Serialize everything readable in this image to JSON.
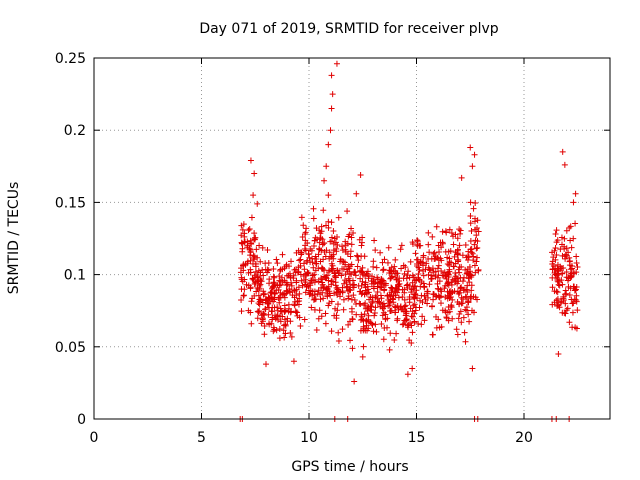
{
  "chart_data": {
    "type": "scatter",
    "title": "Day 071 of 2019, SRMTID for receiver plvp",
    "xlabel": "GPS time / hours",
    "ylabel": "SRMTID / TECUs",
    "xlim": [
      0,
      24
    ],
    "ylim": [
      0,
      0.25
    ],
    "xticks": [
      0,
      5,
      10,
      15,
      20
    ],
    "yticks": [
      0,
      0.05,
      0.1,
      0.15,
      0.2,
      0.25
    ],
    "ytick_labels": [
      "0",
      "0.05",
      "0.1",
      "0.15",
      "0.2",
      "0.25"
    ],
    "grid": true,
    "marker": "+",
    "color": "#e00000",
    "series": [
      {
        "name": "SRMTID",
        "clusters": [
          {
            "x_start": 6.8,
            "x_end": 7.6,
            "y_center": 0.105,
            "y_spread": 0.035
          },
          {
            "x_start": 7.6,
            "x_end": 9.5,
            "y_center": 0.085,
            "y_spread": 0.03
          },
          {
            "x_start": 9.5,
            "x_end": 11.0,
            "y_center": 0.105,
            "y_spread": 0.035
          },
          {
            "x_start": 11.0,
            "x_end": 12.5,
            "y_center": 0.1,
            "y_spread": 0.04
          },
          {
            "x_start": 12.5,
            "x_end": 15.0,
            "y_center": 0.085,
            "y_spread": 0.03
          },
          {
            "x_start": 15.0,
            "x_end": 17.5,
            "y_center": 0.095,
            "y_spread": 0.035
          },
          {
            "x_start": 17.5,
            "x_end": 17.9,
            "y_center": 0.12,
            "y_spread": 0.045
          },
          {
            "x_start": 21.3,
            "x_end": 22.5,
            "y_center": 0.1,
            "y_spread": 0.035
          }
        ],
        "points": [
          [
            10.7,
            0.165
          ],
          [
            10.8,
            0.175
          ],
          [
            10.9,
            0.19
          ],
          [
            11.0,
            0.2
          ],
          [
            11.05,
            0.215
          ],
          [
            11.1,
            0.225
          ],
          [
            11.05,
            0.238
          ],
          [
            11.3,
            0.246
          ],
          [
            10.9,
            0.155
          ],
          [
            7.3,
            0.179
          ],
          [
            7.45,
            0.17
          ],
          [
            7.4,
            0.155
          ],
          [
            12.4,
            0.169
          ],
          [
            12.2,
            0.156
          ],
          [
            17.5,
            0.188
          ],
          [
            17.7,
            0.183
          ],
          [
            17.6,
            0.175
          ],
          [
            17.1,
            0.167
          ],
          [
            21.8,
            0.185
          ],
          [
            21.9,
            0.176
          ],
          [
            22.4,
            0.156
          ],
          [
            22.3,
            0.15
          ],
          [
            12.1,
            0.026
          ],
          [
            14.6,
            0.031
          ],
          [
            14.8,
            0.035
          ],
          [
            17.6,
            0.035
          ],
          [
            8.0,
            0.038
          ],
          [
            9.3,
            0.04
          ],
          [
            12.5,
            0.043
          ],
          [
            21.6,
            0.045
          ],
          [
            6.8,
            0.0
          ],
          [
            6.9,
            0.0
          ],
          [
            11.2,
            0.0
          ],
          [
            11.8,
            0.0
          ],
          [
            17.7,
            0.0
          ],
          [
            17.85,
            0.0
          ],
          [
            21.3,
            0.0
          ],
          [
            21.5,
            0.0
          ],
          [
            22.1,
            0.0
          ]
        ]
      }
    ]
  }
}
